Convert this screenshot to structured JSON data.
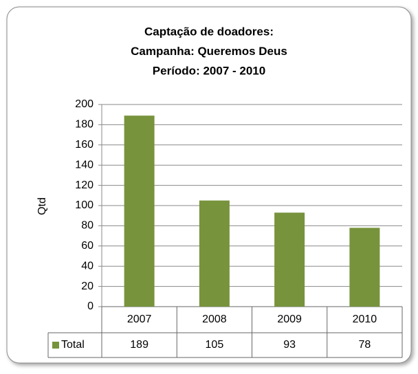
{
  "chart_data": {
    "type": "bar",
    "title": [
      "Captação de doadores:",
      "Campanha: Queremos Deus",
      "Período: 2007 - 2010"
    ],
    "y_label": "Qtd",
    "categories": [
      "2007",
      "2008",
      "2009",
      "2010"
    ],
    "series": [
      {
        "name": "Total",
        "color": "#77933c",
        "values": [
          189,
          105,
          93,
          78
        ]
      }
    ],
    "ylim": [
      0,
      200
    ],
    "yticks": [
      0,
      20,
      40,
      60,
      80,
      100,
      120,
      140,
      160,
      180,
      200
    ],
    "grid": true,
    "data_table": true
  }
}
